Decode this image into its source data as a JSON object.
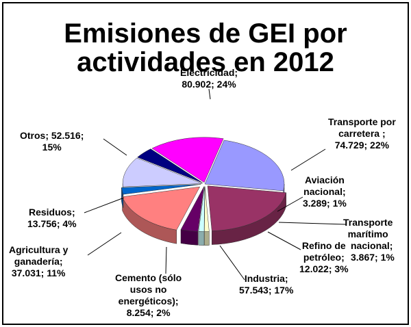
{
  "chart_data": {
    "type": "pie",
    "title": [
      "Emisiones de GEI por",
      "actividades en 2012"
    ],
    "style": "3d-exploded",
    "legend": "none",
    "slices": [
      {
        "label_lines": [
          "Electricidad;",
          "80.902;  24%"
        ],
        "value": 80.902,
        "percent": 24,
        "color": "#9999ff"
      },
      {
        "label_lines": [
          "Transporte por",
          "carretera ;",
          "74.729;  22%"
        ],
        "value": 74.729,
        "percent": 22,
        "color": "#993366"
      },
      {
        "label_lines": [
          "Aviación",
          "nacional;",
          "3.289;  1%"
        ],
        "value": 3.289,
        "percent": 1,
        "color": "#ffffcc"
      },
      {
        "label_lines": [
          "Transporte",
          "marítimo",
          "nacional;",
          "3.867;  1%"
        ],
        "value": 3.867,
        "percent": 1,
        "color": "#ccffff"
      },
      {
        "label_lines": [
          "Refino de",
          "petróleo;",
          "12.022;  3%"
        ],
        "value": 12.022,
        "percent": 3,
        "color": "#660066"
      },
      {
        "label_lines": [
          "Industria;",
          "57.543;  17%"
        ],
        "value": 57.543,
        "percent": 17,
        "color": "#ff8080"
      },
      {
        "label_lines": [
          "Cemento (sólo",
          "usos no",
          "energéticos);",
          "8.254;  2%"
        ],
        "value": 8.254,
        "percent": 2,
        "color": "#0066cc"
      },
      {
        "label_lines": [
          "Agricultura  y",
          "ganadería;",
          "37.031;  11%"
        ],
        "value": 37.031,
        "percent": 11,
        "color": "#ccccff"
      },
      {
        "label_lines": [
          "Residuos;",
          "13.756;  4%"
        ],
        "value": 13.756,
        "percent": 4,
        "color": "#000080"
      },
      {
        "label_lines": [
          "Otros;  52.516;",
          "15%"
        ],
        "value": 52.516,
        "percent": 15,
        "color": "#ff00ff"
      }
    ]
  }
}
